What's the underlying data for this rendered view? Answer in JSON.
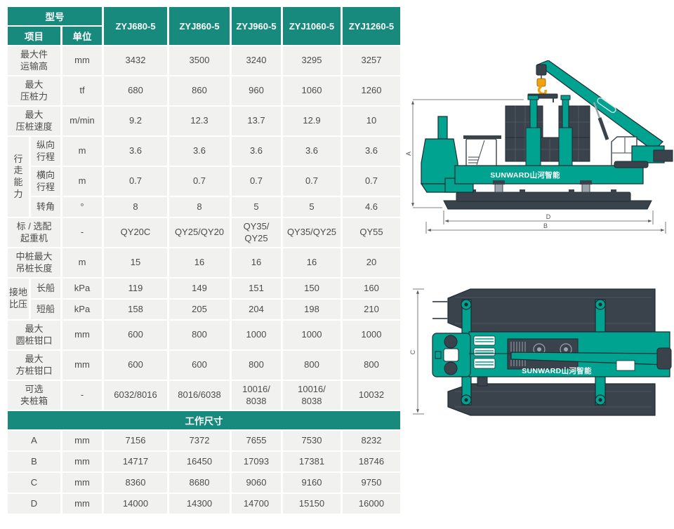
{
  "colors": {
    "header_teal": "#18897D",
    "row_gray": "#F1F1EF",
    "machine_teal": "#00A290",
    "machine_dark": "#3A434B",
    "outline_dark": "#1D2B33",
    "hook_yellow": "#F0A30F",
    "dim_line": "#5A5A5A"
  },
  "table": {
    "header": {
      "model_label": "型号",
      "item_label": "项目",
      "unit_label": "单位"
    },
    "models": [
      "ZYJ680-5",
      "ZYJ860-5",
      "ZYJ960-5",
      "ZYJ1060-5",
      "ZYJ1260-5"
    ],
    "rows": [
      {
        "label": "最大件\n运输高",
        "unit": "mm",
        "values": [
          "3432",
          "3500",
          "3240",
          "3295",
          "3257"
        ]
      },
      {
        "label": "最大\n压桩力",
        "unit": "tf",
        "values": [
          "680",
          "860",
          "960",
          "1060",
          "1260"
        ]
      },
      {
        "label": "最大\n压桩速度",
        "unit": "m/min",
        "values": [
          "9.2",
          "12.3",
          "13.7",
          "12.9",
          "10"
        ]
      },
      {
        "group": "行\n走\n能\n力",
        "group_span": 3,
        "label": "纵向\n行程",
        "unit": "m",
        "values": [
          "3.6",
          "3.6",
          "3.6",
          "3.6",
          "3.6"
        ]
      },
      {
        "in_group": true,
        "label": "横向\n行程",
        "unit": "m",
        "values": [
          "0.7",
          "0.7",
          "0.7",
          "0.7",
          "0.7"
        ]
      },
      {
        "in_group": true,
        "label": "转角",
        "unit": "°",
        "values": [
          "8",
          "8",
          "5",
          "5",
          "4.6"
        ]
      },
      {
        "label": "标 / 选配\n起重机",
        "unit": "-",
        "values": [
          "QY20C",
          "QY25/QY20",
          "QY35/\nQY25",
          "QY35/QY25",
          "QY55"
        ]
      },
      {
        "label": "中桩最大\n吊桩长度",
        "unit": "m",
        "values": [
          "15",
          "16",
          "16",
          "16",
          "20"
        ]
      },
      {
        "group": "接地\n比压",
        "group_span": 2,
        "label": "长船",
        "unit": "kPa",
        "values": [
          "119",
          "149",
          "151",
          "150",
          "160"
        ]
      },
      {
        "in_group": true,
        "label": "短船",
        "unit": "kPa",
        "values": [
          "158",
          "205",
          "204",
          "198",
          "210"
        ]
      },
      {
        "label": "最大\n圆桩钳口",
        "unit": "mm",
        "values": [
          "600",
          "800",
          "1000",
          "1000",
          "1000"
        ]
      },
      {
        "label": "最大\n方桩钳口",
        "unit": "mm",
        "values": [
          "600",
          "600",
          "800",
          "800",
          "800"
        ]
      },
      {
        "label": "可选\n夹桩箱",
        "unit": "-",
        "values": [
          "6032/8016",
          "8016/6038",
          "10016/\n8038",
          "10016/\n8038",
          "10032"
        ]
      },
      {
        "section": "工作尺寸"
      },
      {
        "label": "A",
        "unit": "mm",
        "values": [
          "7156",
          "7372",
          "7655",
          "7530",
          "8232"
        ]
      },
      {
        "label": "B",
        "unit": "mm",
        "values": [
          "14717",
          "16450",
          "17093",
          "17381",
          "18746"
        ]
      },
      {
        "label": "C",
        "unit": "mm",
        "values": [
          "8360",
          "8680",
          "9060",
          "9160",
          "9750"
        ]
      },
      {
        "label": "D",
        "unit": "mm",
        "values": [
          "14000",
          "14300",
          "14700",
          "15150",
          "16000"
        ]
      }
    ]
  },
  "drawings": {
    "brand": "SUNWARD山河智能",
    "side_view": {
      "dim_height": "A",
      "dim_inner_width": "D",
      "dim_outer_width": "B"
    },
    "top_view": {
      "dim_width": "C"
    }
  }
}
